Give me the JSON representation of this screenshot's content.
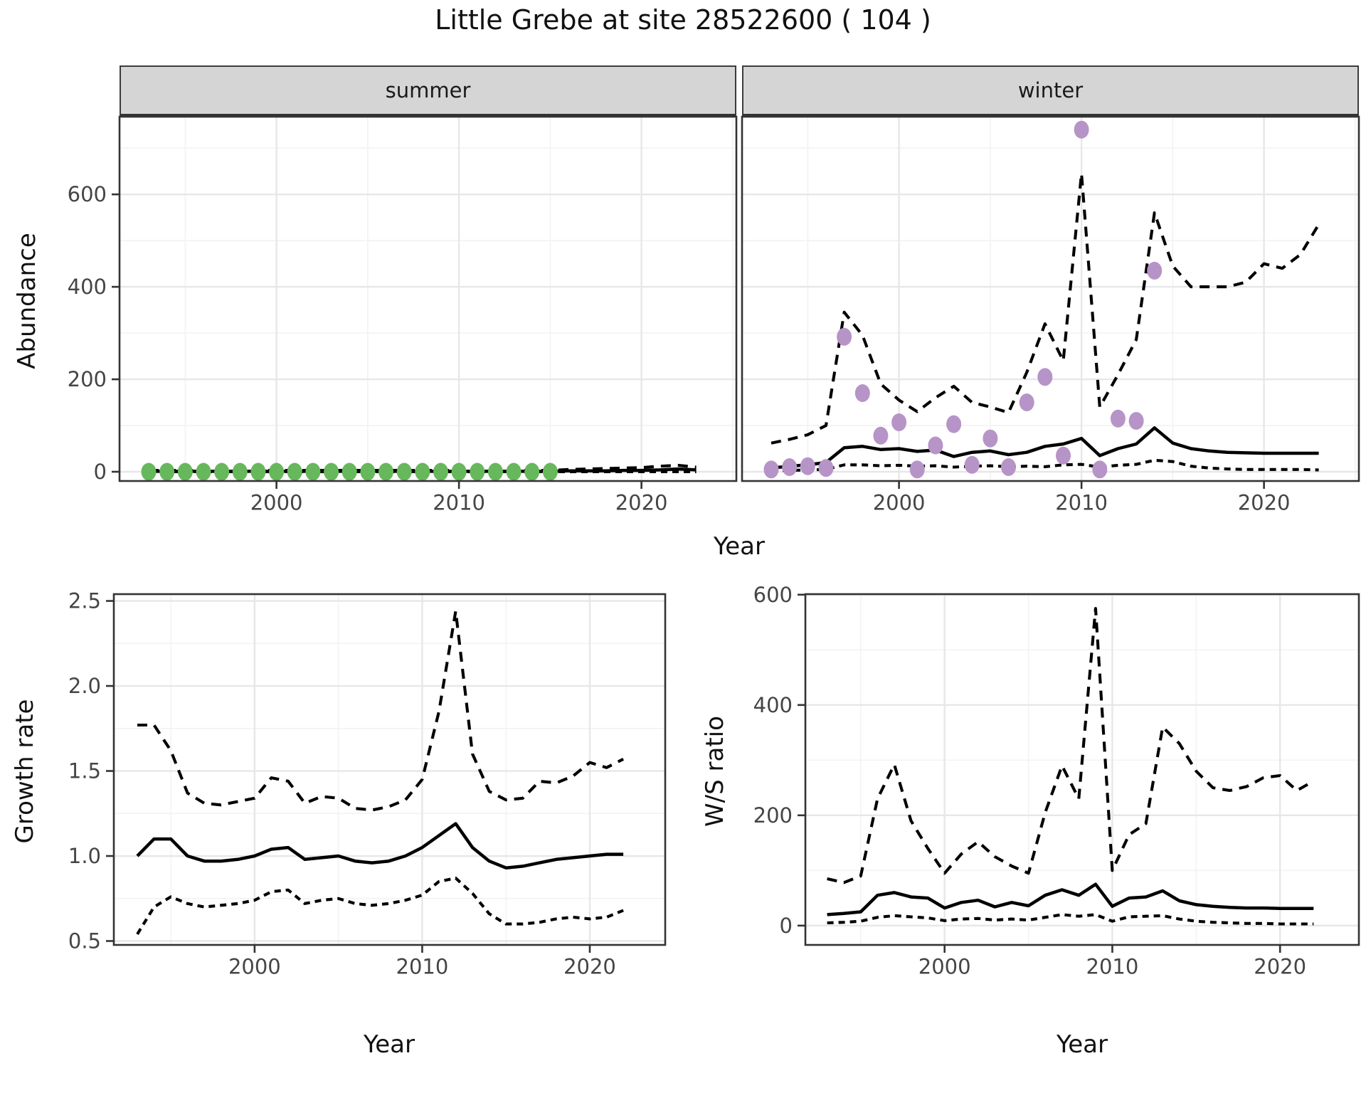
{
  "figure_title": "Little Grebe at site 28522600 ( 104 )",
  "colors": {
    "summer_points": "#67b85c",
    "winter_points": "#b794c7",
    "line": "#000000",
    "panel_border": "#333333",
    "grid_major": "#e7e7e7",
    "grid_minor": "#f3f3f3",
    "strip_bg": "#d5d5d5",
    "tick_label": "#454545"
  },
  "top_row": {
    "shared_xlabel": "Year",
    "shared_ylabel": "Abundance"
  },
  "chart_data": [
    {
      "id": "abundance-summer",
      "type": "line",
      "facet_label": "summer",
      "xlabel": "Year",
      "ylabel": "Abundance",
      "xlim": [
        1991.4,
        2025.2
      ],
      "ylim": [
        -20,
        768
      ],
      "x_major_ticks": [
        2000,
        2010,
        2020
      ],
      "x_tick_labels": [
        "2000",
        "2010",
        "2020"
      ],
      "x_minor_ticks": [
        1995,
        2005,
        2015,
        2025
      ],
      "y_major_ticks": [
        0,
        200,
        400,
        600
      ],
      "y_tick_labels": [
        "0",
        "200",
        "400",
        "600"
      ],
      "y_minor_ticks": [
        100,
        300,
        500,
        700
      ],
      "points": {
        "name": "observed-count",
        "color": "#67b85c",
        "years": [
          1993,
          1994,
          1995,
          1996,
          1997,
          1998,
          1999,
          2000,
          2001,
          2002,
          2003,
          2004,
          2005,
          2006,
          2007,
          2008,
          2009,
          2010,
          2011,
          2012,
          2013,
          2014,
          2015
        ],
        "values": [
          0,
          0,
          0,
          0,
          0,
          0,
          0,
          0,
          0,
          0,
          0,
          0,
          0,
          0,
          0,
          0,
          0,
          0,
          0,
          0,
          0,
          0,
          0
        ]
      },
      "series": [
        {
          "name": "upper_ci",
          "style": "dashed",
          "years": [
            1993,
            1994,
            1995,
            1996,
            1997,
            1998,
            1999,
            2000,
            2001,
            2002,
            2003,
            2004,
            2005,
            2006,
            2007,
            2008,
            2009,
            2010,
            2011,
            2012,
            2013,
            2014,
            2015,
            2016,
            2017,
            2018,
            2019,
            2020,
            2021,
            2022,
            2023
          ],
          "values": [
            3,
            3,
            3,
            3,
            3,
            3,
            3,
            3,
            3,
            3,
            3,
            3,
            3,
            3,
            3,
            3,
            3,
            3,
            3,
            3,
            3,
            3,
            3,
            5,
            6,
            7,
            8,
            9,
            12,
            14,
            10
          ]
        },
        {
          "name": "lower_ci",
          "style": "dashed-short",
          "years": [
            1993,
            1994,
            1995,
            1996,
            1997,
            1998,
            1999,
            2000,
            2001,
            2002,
            2003,
            2004,
            2005,
            2006,
            2007,
            2008,
            2009,
            2010,
            2011,
            2012,
            2013,
            2014,
            2015,
            2016,
            2017,
            2018,
            2019,
            2020,
            2021,
            2022,
            2023
          ],
          "values": [
            0,
            0,
            0,
            0,
            0,
            0,
            0,
            0,
            0,
            0,
            0,
            0,
            0,
            0,
            0,
            0,
            0,
            0,
            0,
            0,
            0,
            0,
            0,
            0,
            0,
            0,
            0,
            0,
            0,
            0,
            0
          ]
        },
        {
          "name": "fit",
          "style": "solid",
          "years": [
            1993,
            1994,
            1995,
            1996,
            1997,
            1998,
            1999,
            2000,
            2001,
            2002,
            2003,
            2004,
            2005,
            2006,
            2007,
            2008,
            2009,
            2010,
            2011,
            2012,
            2013,
            2014,
            2015,
            2016,
            2017,
            2018,
            2019,
            2020,
            2021,
            2022,
            2023
          ],
          "values": [
            1,
            1,
            1,
            1,
            1,
            1,
            1,
            1,
            1,
            1,
            1,
            1,
            1,
            1,
            1,
            1,
            1,
            1,
            1,
            1,
            1,
            1,
            1,
            2,
            2,
            2,
            3,
            3,
            4,
            6,
            4
          ]
        }
      ]
    },
    {
      "id": "abundance-winter",
      "type": "line",
      "facet_label": "winter",
      "xlabel": "Year",
      "ylabel": "Abundance",
      "xlim": [
        1991.4,
        2025.2
      ],
      "ylim": [
        -20,
        768
      ],
      "x_major_ticks": [
        2000,
        2010,
        2020
      ],
      "x_tick_labels": [
        "2000",
        "2010",
        "2020"
      ],
      "x_minor_ticks": [
        1995,
        2005,
        2015,
        2025
      ],
      "y_major_ticks": [
        0,
        200,
        400,
        600
      ],
      "y_tick_labels": [],
      "y_minor_ticks": [
        100,
        300,
        500,
        700
      ],
      "points": {
        "name": "observed-count",
        "color": "#b794c7",
        "years": [
          1993,
          1994,
          1995,
          1996,
          1997,
          1998,
          1999,
          2000,
          2001,
          2002,
          2003,
          2004,
          2005,
          2006,
          2007,
          2008,
          2009,
          2010,
          2011,
          2012,
          2013,
          2014
        ],
        "values": [
          5,
          10,
          12,
          8,
          292,
          170,
          78,
          107,
          5,
          57,
          103,
          15,
          72,
          10,
          150,
          205,
          35,
          740,
          5,
          115,
          110,
          435
        ]
      },
      "series": [
        {
          "name": "upper_ci",
          "style": "dashed",
          "years": [
            1993,
            1994,
            1995,
            1996,
            1997,
            1998,
            1999,
            2000,
            2001,
            2002,
            2003,
            2004,
            2005,
            2006,
            2007,
            2008,
            2009,
            2010,
            2011,
            2012,
            2013,
            2014,
            2015,
            2016,
            2017,
            2018,
            2019,
            2020,
            2021,
            2022,
            2023
          ],
          "values": [
            62,
            70,
            80,
            100,
            345,
            295,
            190,
            155,
            130,
            160,
            185,
            150,
            140,
            128,
            215,
            320,
            240,
            645,
            140,
            210,
            286,
            560,
            445,
            400,
            400,
            400,
            410,
            450,
            440,
            470,
            535
          ]
        },
        {
          "name": "lower_ci",
          "style": "dashed-short",
          "years": [
            1993,
            1994,
            1995,
            1996,
            1997,
            1998,
            1999,
            2000,
            2001,
            2002,
            2003,
            2004,
            2005,
            2006,
            2007,
            2008,
            2009,
            2010,
            2011,
            2012,
            2013,
            2014,
            2015,
            2016,
            2017,
            2018,
            2019,
            2020,
            2021,
            2022,
            2023
          ],
          "values": [
            2,
            3,
            4,
            5,
            15,
            15,
            13,
            14,
            12,
            13,
            10,
            12,
            13,
            11,
            12,
            11,
            15,
            16,
            10,
            14,
            16,
            25,
            22,
            12,
            8,
            6,
            5,
            5,
            5,
            5,
            4
          ]
        },
        {
          "name": "fit",
          "style": "solid",
          "years": [
            1993,
            1994,
            1995,
            1996,
            1997,
            1998,
            1999,
            2000,
            2001,
            2002,
            2003,
            2004,
            2005,
            2006,
            2007,
            2008,
            2009,
            2010,
            2011,
            2012,
            2013,
            2014,
            2015,
            2016,
            2017,
            2018,
            2019,
            2020,
            2021,
            2022,
            2023
          ],
          "values": [
            8,
            12,
            15,
            20,
            52,
            55,
            48,
            50,
            44,
            47,
            33,
            42,
            45,
            37,
            42,
            55,
            60,
            72,
            35,
            50,
            60,
            95,
            62,
            50,
            45,
            42,
            41,
            40,
            40,
            40,
            40
          ]
        }
      ]
    },
    {
      "id": "growth-rate",
      "type": "line",
      "facet_label": "",
      "xlabel": "Year",
      "ylabel": "Growth rate",
      "xlim": [
        1991.6,
        2024.5
      ],
      "ylim": [
        0.477,
        2.54
      ],
      "x_major_ticks": [
        2000,
        2010,
        2020
      ],
      "x_tick_labels": [
        "2000",
        "2010",
        "2020"
      ],
      "x_minor_ticks": [
        1995,
        2005,
        2015
      ],
      "y_major_ticks": [
        0.5,
        1.0,
        1.5,
        2.0,
        2.5
      ],
      "y_tick_labels": [
        "0.5",
        "1.0",
        "1.5",
        "2.0",
        "2.5"
      ],
      "y_minor_ticks": [
        0.75,
        1.25,
        1.75,
        2.25
      ],
      "points": null,
      "series": [
        {
          "name": "upper_ci",
          "style": "dashed",
          "years": [
            1993,
            1994,
            1995,
            1996,
            1997,
            1998,
            1999,
            2000,
            2001,
            2002,
            2003,
            2004,
            2005,
            2006,
            2007,
            2008,
            2009,
            2010,
            2011,
            2012,
            2013,
            2014,
            2015,
            2016,
            2017,
            2018,
            2019,
            2020,
            2021,
            2022
          ],
          "values": [
            1.77,
            1.77,
            1.62,
            1.37,
            1.31,
            1.3,
            1.32,
            1.34,
            1.46,
            1.44,
            1.31,
            1.35,
            1.34,
            1.28,
            1.27,
            1.29,
            1.33,
            1.45,
            1.85,
            2.44,
            1.6,
            1.38,
            1.33,
            1.34,
            1.44,
            1.43,
            1.47,
            1.55,
            1.52,
            1.57
          ]
        },
        {
          "name": "lower_ci",
          "style": "dashed-short",
          "years": [
            1993,
            1994,
            1995,
            1996,
            1997,
            1998,
            1999,
            2000,
            2001,
            2002,
            2003,
            2004,
            2005,
            2006,
            2007,
            2008,
            2009,
            2010,
            2011,
            2012,
            2013,
            2014,
            2015,
            2016,
            2017,
            2018,
            2019,
            2020,
            2021,
            2022
          ],
          "values": [
            0.54,
            0.7,
            0.76,
            0.72,
            0.7,
            0.71,
            0.72,
            0.74,
            0.79,
            0.8,
            0.72,
            0.74,
            0.75,
            0.72,
            0.71,
            0.72,
            0.74,
            0.77,
            0.85,
            0.87,
            0.78,
            0.66,
            0.6,
            0.6,
            0.61,
            0.63,
            0.64,
            0.63,
            0.64,
            0.68
          ]
        },
        {
          "name": "fit",
          "style": "solid",
          "years": [
            1993,
            1994,
            1995,
            1996,
            1997,
            1998,
            1999,
            2000,
            2001,
            2002,
            2003,
            2004,
            2005,
            2006,
            2007,
            2008,
            2009,
            2010,
            2011,
            2012,
            2013,
            2014,
            2015,
            2016,
            2017,
            2018,
            2019,
            2020,
            2021,
            2022
          ],
          "values": [
            1.0,
            1.1,
            1.1,
            1.0,
            0.97,
            0.97,
            0.98,
            1.0,
            1.04,
            1.05,
            0.98,
            0.99,
            1.0,
            0.97,
            0.96,
            0.97,
            1.0,
            1.05,
            1.12,
            1.19,
            1.05,
            0.97,
            0.93,
            0.94,
            0.96,
            0.98,
            0.99,
            1.0,
            1.01,
            1.01
          ]
        }
      ]
    },
    {
      "id": "ws-ratio",
      "type": "line",
      "facet_label": "",
      "xlabel": "Year",
      "ylabel": "W/S ratio",
      "xlim": [
        1991.7,
        2024.7
      ],
      "ylim": [
        -35,
        601
      ],
      "x_major_ticks": [
        2000,
        2010,
        2020
      ],
      "x_tick_labels": [
        "2000",
        "2010",
        "2020"
      ],
      "x_minor_ticks": [
        1995,
        2005,
        2015
      ],
      "y_major_ticks": [
        0,
        200,
        400,
        600
      ],
      "y_tick_labels": [
        "0",
        "200",
        "400",
        "600"
      ],
      "y_minor_ticks": [
        100,
        300,
        500
      ],
      "points": null,
      "series": [
        {
          "name": "upper_ci",
          "style": "dashed",
          "years": [
            1993,
            1994,
            1995,
            1996,
            1997,
            1998,
            1999,
            2000,
            2001,
            2002,
            2003,
            2004,
            2005,
            2006,
            2007,
            2008,
            2009,
            2010,
            2011,
            2012,
            2013,
            2014,
            2015,
            2016,
            2017,
            2018,
            2019,
            2020,
            2021,
            2022
          ],
          "values": [
            85,
            78,
            90,
            230,
            292,
            190,
            140,
            95,
            130,
            152,
            125,
            108,
            95,
            205,
            290,
            230,
            575,
            100,
            165,
            185,
            360,
            330,
            280,
            250,
            245,
            252,
            268,
            272,
            245,
            262
          ]
        },
        {
          "name": "lower_ci",
          "style": "dashed-short",
          "years": [
            1993,
            1994,
            1995,
            1996,
            1997,
            1998,
            1999,
            2000,
            2001,
            2002,
            2003,
            2004,
            2005,
            2006,
            2007,
            2008,
            2009,
            2010,
            2011,
            2012,
            2013,
            2014,
            2015,
            2016,
            2017,
            2018,
            2019,
            2020,
            2021,
            2022
          ],
          "values": [
            5,
            6,
            8,
            15,
            18,
            16,
            14,
            9,
            12,
            13,
            10,
            12,
            10,
            15,
            20,
            17,
            20,
            8,
            16,
            17,
            18,
            12,
            8,
            6,
            5,
            4,
            4,
            3,
            3,
            3
          ]
        },
        {
          "name": "fit",
          "style": "solid",
          "years": [
            1993,
            1994,
            1995,
            1996,
            1997,
            1998,
            1999,
            2000,
            2001,
            2002,
            2003,
            2004,
            2005,
            2006,
            2007,
            2008,
            2009,
            2010,
            2011,
            2012,
            2013,
            2014,
            2015,
            2016,
            2017,
            2018,
            2019,
            2020,
            2021,
            2022
          ],
          "values": [
            20,
            22,
            25,
            55,
            60,
            52,
            50,
            32,
            42,
            46,
            34,
            42,
            36,
            55,
            65,
            55,
            75,
            35,
            50,
            52,
            63,
            45,
            38,
            35,
            33,
            32,
            32,
            31,
            31,
            31
          ]
        }
      ]
    }
  ]
}
